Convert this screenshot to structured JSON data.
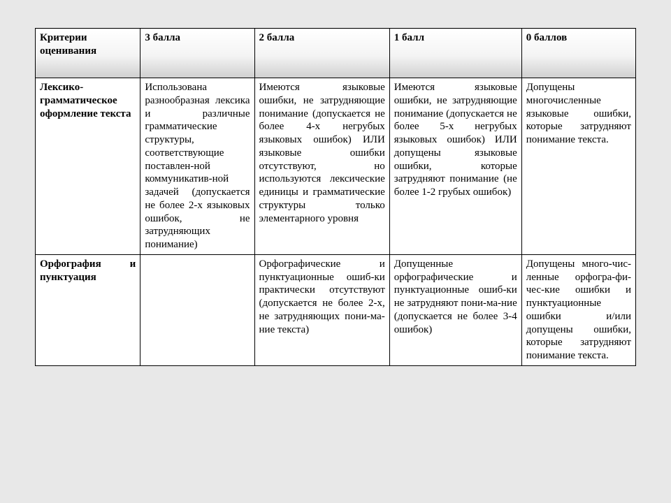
{
  "table": {
    "columns": [
      "Критерии оценивания",
      "3 балла",
      "2 балла",
      "1 балл",
      "0 баллов"
    ],
    "col_widths_pct": [
      17.5,
      19,
      22.5,
      22,
      19
    ],
    "header_gradient": [
      "#ffffff",
      "#f4f4f4",
      "#cfcfcf"
    ],
    "border_color": "#000000",
    "background_color": "#ffffff",
    "font_family": "Times New Roman",
    "label_fontsize": 15,
    "rows": [
      {
        "label": "Лексико-грамматическое оформление текста",
        "cells": [
          "Использована разнообразная лексика и различные грамматические структуры, соответствующие поставлен-ной коммуникатив-ной задачей (допускается не более 2-х языковых ошибок, не затрудняющих понимание)",
          "Имеются языковые ошибки, не затрудняющие понимание (допускается не более 4-х негрубых языковых ошибок) ИЛИ языковые ошибки отсутствуют, но используются лексические единицы и грамматические структуры только элементарного уровня",
          "Имеются языковые ошибки, не затрудняющие понимание (допускается не более 5-х негрубых языковых ошибок) ИЛИ допущены языковые ошибки, которые затрудняют понимание (не более 1-2 грубых ошибок)",
          "Допущены многочисленные языковые ошибки, которые затрудняют понимание текста."
        ]
      },
      {
        "label": "Орфография и пунктуация",
        "cells": [
          "",
          "Орфографические и пунктуационные ошиб-ки практически отсутствуют (допускается не более 2-х, не затрудняющих пони-ма-ние текста)",
          "Допущенные орфографические и пунктуационные ошиб-ки не затрудняют пони-ма-ние (допускается не более 3-4 ошибок)",
          "Допущены много-чис-ленные орфогра-фи-чес-кие ошибки и пунктуационные ошибки и/или допущены ошибки, которые затрудняют понимание текста."
        ]
      }
    ]
  },
  "page_background": "#e8e8e8"
}
